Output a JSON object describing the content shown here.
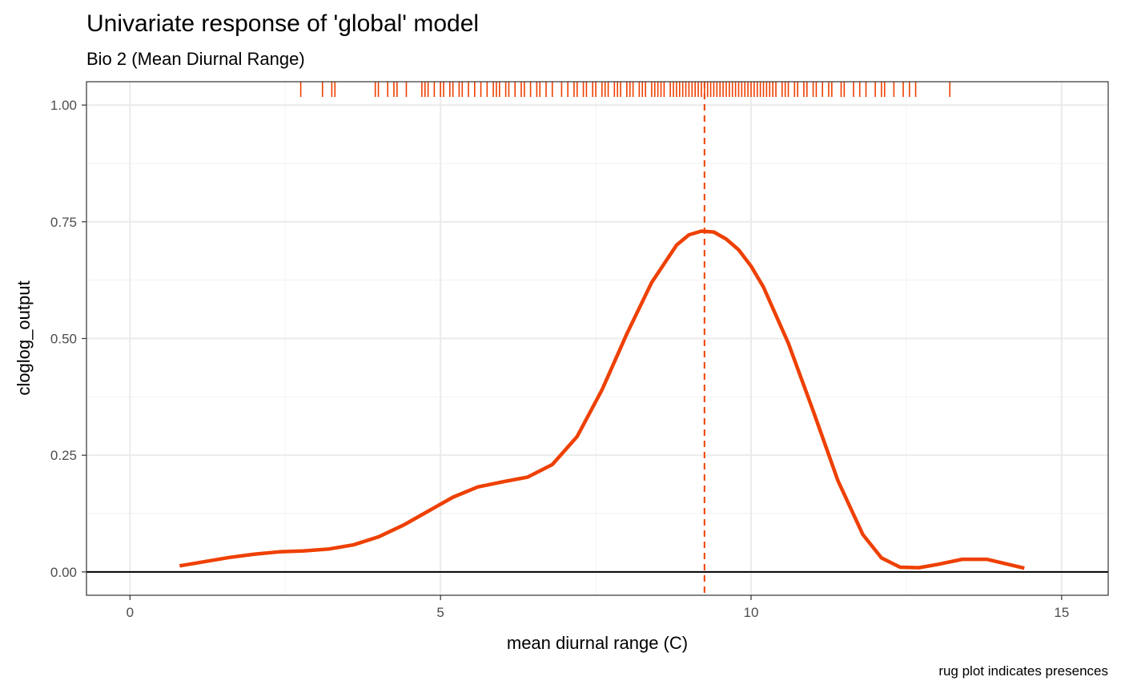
{
  "chart_data": {
    "type": "line",
    "title": "Univariate response of 'global' model",
    "subtitle": "Bio 2 (Mean Diurnal Range)",
    "xlabel": "mean diurnal range (C)",
    "ylabel": "cloglog_output",
    "caption": "rug plot indicates presences",
    "xlim": [
      -0.7,
      15.75
    ],
    "ylim": [
      -0.05,
      1.05
    ],
    "x_ticks": [
      0,
      5,
      10,
      15
    ],
    "x_tick_labels": [
      "0",
      "5",
      "10",
      "15"
    ],
    "y_ticks": [
      0,
      0.25,
      0.5,
      0.75,
      1.0
    ],
    "y_tick_labels": [
      "0.00",
      "0.25",
      "0.50",
      "0.75",
      "1.00"
    ],
    "grid": true,
    "series": [
      {
        "color": "#ee4000",
        "x": [
          0.8,
          1.2,
          1.6,
          2.0,
          2.4,
          2.8,
          3.2,
          3.6,
          4.0,
          4.4,
          4.8,
          5.2,
          5.6,
          6.0,
          6.4,
          6.8,
          7.2,
          7.6,
          8.0,
          8.4,
          8.8,
          9.0,
          9.2,
          9.4,
          9.6,
          9.8,
          10.0,
          10.2,
          10.6,
          11.0,
          11.4,
          11.8,
          12.1,
          12.4,
          12.7,
          13.0,
          13.4,
          13.8,
          14.4
        ],
        "y": [
          0.013,
          0.022,
          0.031,
          0.038,
          0.043,
          0.045,
          0.049,
          0.058,
          0.075,
          0.1,
          0.13,
          0.16,
          0.182,
          0.193,
          0.203,
          0.23,
          0.29,
          0.39,
          0.51,
          0.62,
          0.7,
          0.722,
          0.73,
          0.728,
          0.713,
          0.69,
          0.655,
          0.61,
          0.49,
          0.345,
          0.195,
          0.08,
          0.03,
          0.01,
          0.009,
          0.016,
          0.027,
          0.027,
          0.008
        ]
      }
    ],
    "reference_lines": [
      {
        "axis": "x",
        "value": 9.25,
        "style": "dashed",
        "color": "#ee4000"
      },
      {
        "axis": "y",
        "value": 0,
        "style": "solid",
        "color": "#000000"
      }
    ],
    "rug": {
      "color": "#ee4000",
      "y_position": "top",
      "presence_x": [
        2.75,
        3.1,
        3.25,
        3.3,
        3.95,
        4.0,
        4.15,
        4.25,
        4.3,
        4.45,
        4.7,
        4.75,
        4.8,
        4.9,
        5.0,
        5.05,
        5.15,
        5.2,
        5.3,
        5.35,
        5.45,
        5.55,
        5.65,
        5.75,
        5.85,
        5.9,
        5.95,
        6.05,
        6.1,
        6.2,
        6.3,
        6.35,
        6.45,
        6.55,
        6.6,
        6.7,
        6.8,
        6.95,
        7.05,
        7.15,
        7.2,
        7.3,
        7.35,
        7.45,
        7.5,
        7.6,
        7.65,
        7.7,
        7.8,
        7.85,
        7.9,
        8.0,
        8.05,
        8.1,
        8.2,
        8.25,
        8.3,
        8.4,
        8.45,
        8.5,
        8.55,
        8.6,
        8.7,
        8.75,
        8.8,
        8.85,
        8.9,
        8.95,
        9.0,
        9.05,
        9.1,
        9.15,
        9.2,
        9.25,
        9.3,
        9.35,
        9.4,
        9.45,
        9.5,
        9.55,
        9.6,
        9.65,
        9.7,
        9.75,
        9.8,
        9.85,
        9.9,
        9.95,
        10.0,
        10.05,
        10.1,
        10.15,
        10.2,
        10.25,
        10.3,
        10.35,
        10.4,
        10.5,
        10.55,
        10.6,
        10.7,
        10.75,
        10.85,
        10.9,
        11.0,
        11.05,
        11.15,
        11.25,
        11.3,
        11.45,
        11.5,
        11.65,
        11.75,
        11.85,
        12.0,
        12.1,
        12.15,
        12.3,
        12.45,
        12.55,
        12.65,
        13.2
      ]
    }
  }
}
